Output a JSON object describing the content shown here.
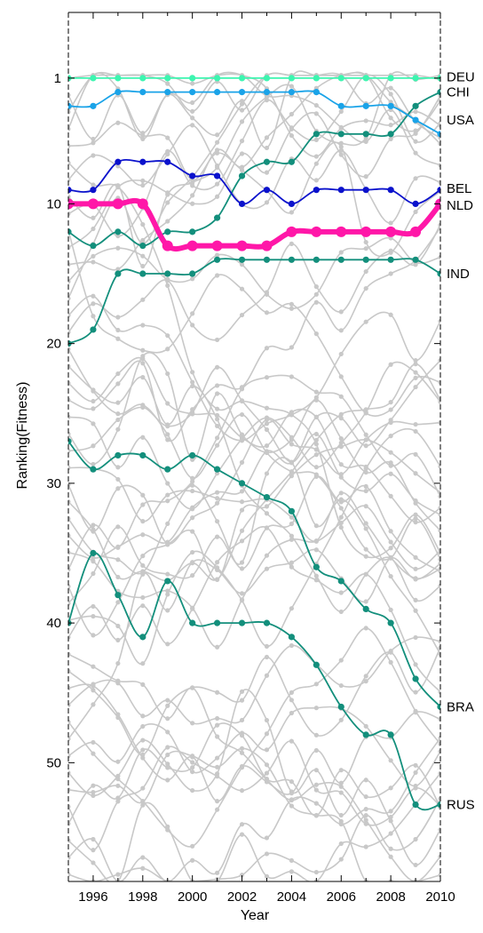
{
  "chart_data": {
    "type": "line",
    "xlabel": "Year",
    "ylabel": "Ranking(Fitness)",
    "xlim": [
      1995,
      2010
    ],
    "ylim": [
      58.5,
      -3.7
    ],
    "y_inverted": true,
    "grid": false,
    "x": [
      1995,
      1996,
      1997,
      1998,
      1999,
      2000,
      2001,
      2002,
      2003,
      2004,
      2005,
      2006,
      2007,
      2008,
      2009,
      2010
    ],
    "x_ticks": [
      1996,
      1998,
      2000,
      2002,
      2004,
      2006,
      2008,
      2010
    ],
    "x_tick_labels": [
      "1996",
      "1998",
      "2000",
      "2002",
      "2004",
      "2006",
      "2008",
      "2010"
    ],
    "y_ticks": [
      1,
      10,
      20,
      30,
      40,
      50
    ],
    "y_tick_labels": [
      "1",
      "10",
      "20",
      "30",
      "40",
      "50"
    ],
    "highlighted_series": [
      {
        "name": "DEU",
        "color": "#3df5b0",
        "values": [
          1,
          1,
          1,
          1,
          1,
          1,
          1,
          1,
          1,
          1,
          1,
          1,
          1,
          1,
          1,
          1
        ]
      },
      {
        "name": "CHI",
        "color": "#138f7c",
        "values": [
          12,
          13,
          12,
          13,
          12,
          12,
          11,
          8,
          7,
          7,
          5,
          5,
          5,
          5,
          3,
          2
        ]
      },
      {
        "name": "USA",
        "color": "#1aa3e8",
        "values": [
          3,
          3,
          2,
          2,
          2,
          2,
          2,
          2,
          2,
          2,
          2,
          3,
          3,
          3,
          4,
          5
        ]
      },
      {
        "name": "BEL",
        "color": "#0b12cc",
        "values": [
          9,
          9,
          7,
          7,
          7,
          8,
          8,
          10,
          9,
          10,
          9,
          9,
          9,
          9,
          10,
          9
        ]
      },
      {
        "name": "NLD",
        "color": "#ff17a8",
        "bold": true,
        "values": [
          10,
          10,
          10,
          10,
          13,
          13,
          13,
          13,
          13,
          12,
          12,
          12,
          12,
          12,
          12,
          10
        ]
      },
      {
        "name": "IND",
        "color": "#138f7c",
        "values": [
          20,
          19,
          15,
          15,
          15,
          15,
          14,
          14,
          14,
          14,
          14,
          14,
          14,
          14,
          14,
          15
        ]
      },
      {
        "name": "BRA",
        "color": "#138f7c",
        "values": [
          27,
          29,
          28,
          28,
          29,
          28,
          29,
          30,
          31,
          32,
          36,
          37,
          39,
          40,
          44,
          46
        ]
      },
      {
        "name": "RUS",
        "color": "#138f7c",
        "values": [
          40,
          35,
          38,
          41,
          37,
          40,
          40,
          40,
          40,
          41,
          43,
          46,
          48,
          48,
          53,
          53
        ]
      }
    ],
    "series_labels": [
      {
        "name": "DEU",
        "value": 0.9
      },
      {
        "name": "CHI",
        "value": 2.0
      },
      {
        "name": "USA",
        "value": 4.0
      },
      {
        "name": "BEL",
        "value": 8.9
      },
      {
        "name": "NLD",
        "value": 10.1
      },
      {
        "name": "IND",
        "value": 15.0
      },
      {
        "name": "BRA",
        "value": 46.0
      },
      {
        "name": "RUS",
        "value": 53.0
      }
    ],
    "background_series_color": "#c8c8c8",
    "background_series_count": 48
  }
}
